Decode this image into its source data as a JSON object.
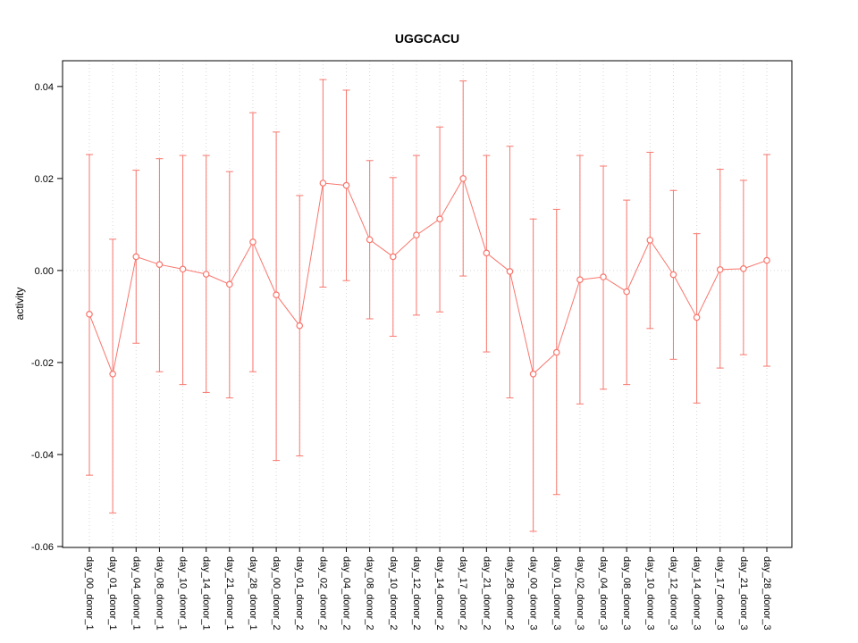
{
  "title": "UGGCACU",
  "chart_data": {
    "type": "line",
    "title": "UGGCACU",
    "xlabel": "",
    "ylabel": "activity",
    "legend": "none",
    "grid": "dotted vertical gridline at each category; dotted horizontal reference line at y=0",
    "ylim": [
      -0.0602,
      0.0456
    ],
    "yticks": [
      -0.06,
      -0.04,
      -0.02,
      0,
      0.02,
      0.04
    ],
    "ytick_labels": [
      "-0.06",
      "-0.04",
      "-0.02",
      "0.00",
      "0.02",
      "0.04"
    ],
    "series_color": "#f8766d",
    "gridline_color": "#d6d6d6",
    "point_style": "open-circle",
    "error_bars": true,
    "categories": [
      "day_00_donor_1",
      "day_01_donor_1",
      "day_04_donor_1",
      "day_08_donor_1",
      "day_10_donor_1",
      "day_14_donor_1",
      "day_21_donor_1",
      "day_28_donor_1",
      "day_00_donor_2",
      "day_01_donor_2",
      "day_02_donor_2",
      "day_04_donor_2",
      "day_08_donor_2",
      "day_10_donor_2",
      "day_12_donor_2",
      "day_14_donor_2",
      "day_17_donor_2",
      "day_21_donor_2",
      "day_28_donor_2",
      "day_00_donor_3",
      "day_01_donor_3",
      "day_02_donor_3",
      "day_04_donor_3",
      "day_08_donor_3",
      "day_10_donor_3",
      "day_12_donor_3",
      "day_14_donor_3",
      "day_17_donor_3",
      "day_21_donor_3",
      "day_28_donor_3"
    ],
    "series": [
      {
        "name": "activity",
        "means": [
          -0.0095,
          -0.0225,
          0.003,
          0.0013,
          0.0003,
          -0.0008,
          -0.003,
          0.0062,
          -0.0053,
          -0.012,
          0.019,
          0.0185,
          0.0067,
          0.003,
          0.0077,
          0.0112,
          0.02,
          0.0038,
          -0.0002,
          -0.0225,
          -0.0178,
          -0.002,
          -0.0014,
          -0.0046,
          0.0066,
          -0.0009,
          -0.0102,
          0.0002,
          0.0004,
          0.0022
        ],
        "lower": [
          -0.0445,
          -0.0527,
          -0.0158,
          -0.022,
          -0.0248,
          -0.0265,
          -0.0277,
          -0.022,
          -0.0413,
          -0.0403,
          -0.0036,
          -0.0022,
          -0.0105,
          -0.0143,
          -0.0097,
          -0.009,
          -0.0012,
          -0.0177,
          -0.0277,
          -0.0567,
          -0.0487,
          -0.029,
          -0.0258,
          -0.0248,
          -0.0126,
          -0.0193,
          -0.0288,
          -0.0212,
          -0.0183,
          -0.0208
        ],
        "upper": [
          0.0252,
          0.0068,
          0.0218,
          0.0243,
          0.025,
          0.025,
          0.0215,
          0.0343,
          0.0301,
          0.0163,
          0.0415,
          0.0392,
          0.0239,
          0.0202,
          0.025,
          0.0312,
          0.0412,
          0.025,
          0.027,
          0.0112,
          0.0133,
          0.025,
          0.0227,
          0.0153,
          0.0257,
          0.0174,
          0.008,
          0.022,
          0.0196,
          0.0252
        ]
      }
    ]
  }
}
